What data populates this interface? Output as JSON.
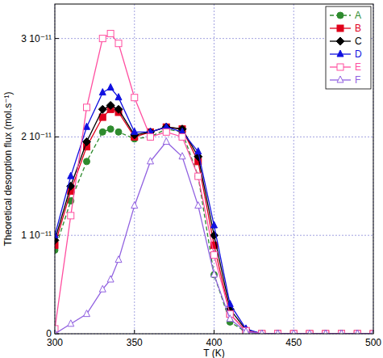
{
  "chart_data": {
    "type": "line",
    "x_label": "T (K)",
    "y_label": "Theoretical desorption flux (mol.s⁻¹)",
    "x": [
      300,
      310,
      320,
      330,
      335,
      340,
      350,
      360,
      370,
      380,
      390,
      400,
      410,
      420,
      430,
      440,
      450,
      460,
      470,
      480,
      490,
      500
    ],
    "xlim": [
      300,
      500
    ],
    "xticks": [
      300,
      350,
      400,
      450,
      500
    ],
    "ylim": [
      0,
      3.35e-11
    ],
    "yticks": [
      {
        "value": 0,
        "label": "0"
      },
      {
        "value": 1e-11,
        "label": "1 10⁻¹¹"
      },
      {
        "value": 2e-11,
        "label": "2 10⁻¹¹"
      },
      {
        "value": 3e-11,
        "label": "3 10⁻¹¹"
      }
    ],
    "grid": true,
    "legend": "upper right",
    "series": [
      {
        "name": "A",
        "color": "#2e8b2e",
        "marker": "circle",
        "line_style": "dashed",
        "values": [
          8.5e-12,
          1.35e-11,
          1.75e-11,
          2.05e-11,
          2.08e-11,
          2.05e-11,
          1.98e-11,
          2e-11,
          2.08e-11,
          2.05e-11,
          1.6e-11,
          6e-12,
          1.2e-12,
          2e-13,
          0,
          0,
          0,
          0,
          0,
          0,
          0,
          0
        ]
      },
      {
        "name": "B",
        "color": "#e0001b",
        "marker": "square",
        "line_style": "solid",
        "values": [
          9e-12,
          1.45e-11,
          1.9e-11,
          2.2e-11,
          2.28e-11,
          2.25e-11,
          2e-11,
          2.05e-11,
          2.1e-11,
          2.08e-11,
          1.75e-11,
          9e-12,
          2e-12,
          3e-13,
          0,
          0,
          0,
          0,
          0,
          0,
          0,
          0
        ]
      },
      {
        "name": "C",
        "color": "#000000",
        "marker": "diamond",
        "line_style": "solid",
        "values": [
          9.5e-12,
          1.5e-11,
          1.95e-11,
          2.28e-11,
          2.32e-11,
          2.28e-11,
          2.02e-11,
          2.05e-11,
          2.1e-11,
          2.08e-11,
          1.8e-11,
          1e-11,
          2.5e-12,
          4e-13,
          0,
          0,
          0,
          0,
          0,
          0,
          0,
          0
        ]
      },
      {
        "name": "D",
        "color": "#1010e0",
        "marker": "triangle",
        "line_style": "solid",
        "values": [
          1e-11,
          1.6e-11,
          2.1e-11,
          2.45e-11,
          2.5e-11,
          2.4e-11,
          2.05e-11,
          2.05e-11,
          2.1e-11,
          2.05e-11,
          1.85e-11,
          1.1e-11,
          3e-12,
          5e-13,
          0,
          0,
          0,
          0,
          0,
          0,
          0,
          0
        ]
      },
      {
        "name": "E",
        "color": "#ff4fa0",
        "marker": "square-open",
        "line_style": "solid",
        "values": [
          5e-13,
          1.2e-11,
          2.3e-11,
          3e-11,
          3.05e-11,
          2.95e-11,
          2.4e-11,
          2e-11,
          2.05e-11,
          2e-11,
          1.6e-11,
          8e-12,
          2e-12,
          3e-13,
          0,
          0,
          0,
          0,
          0,
          0,
          0,
          0
        ]
      },
      {
        "name": "F",
        "color": "#9060e0",
        "marker": "triangle-open",
        "line_style": "solid",
        "values": [
          0,
          1e-12,
          2e-12,
          4.5e-12,
          5.5e-12,
          7.5e-12,
          1.3e-11,
          1.75e-11,
          1.95e-11,
          1.8e-11,
          1.3e-11,
          6e-12,
          1.5e-12,
          2e-13,
          0,
          0,
          0,
          0,
          0,
          0,
          0,
          0
        ]
      }
    ]
  }
}
